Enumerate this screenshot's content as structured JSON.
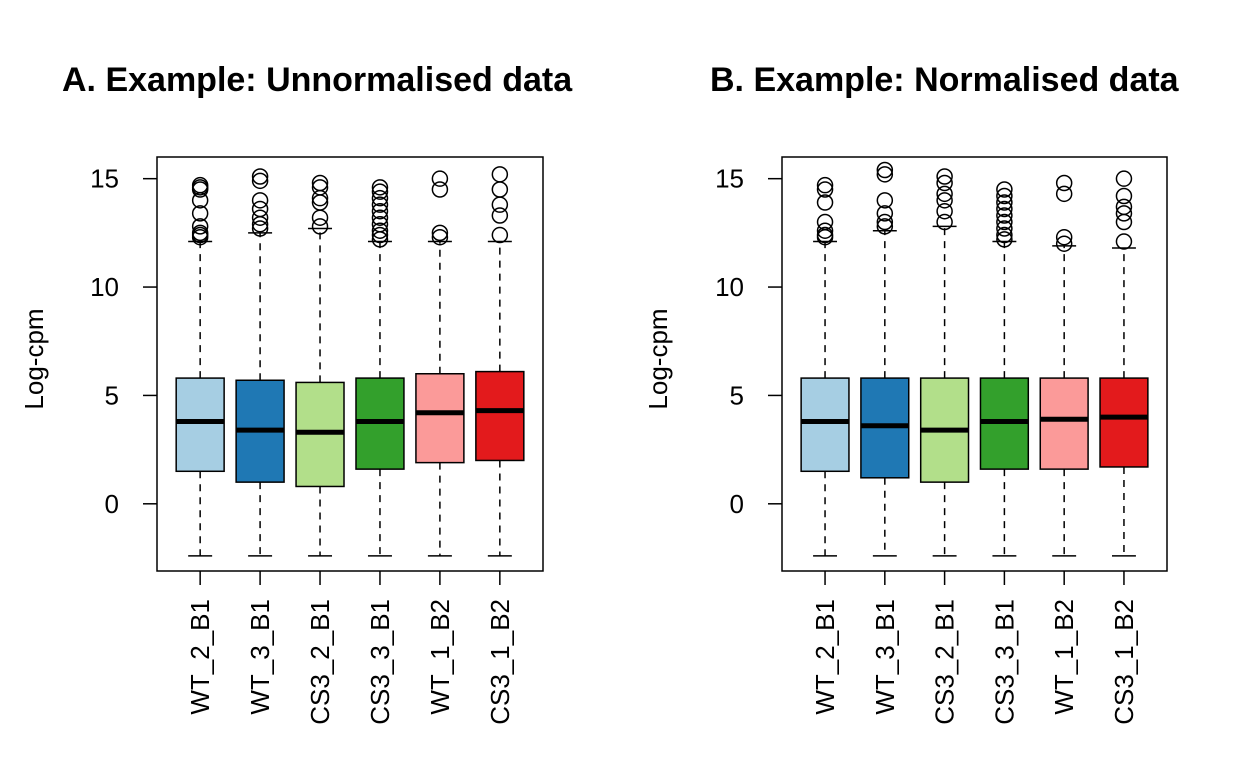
{
  "chart_data": [
    {
      "type": "box",
      "title": "A. Example: Unnormalised data",
      "ylabel": "Log-cpm",
      "xlabel": "",
      "ylim": [
        -3.1,
        16.0
      ],
      "yticks": [
        0,
        5,
        10,
        15
      ],
      "grid": false,
      "categories": [
        "WT_2_B1",
        "WT_3_B1",
        "CS3_2_B1",
        "CS3_3_B1",
        "WT_1_B2",
        "CS3_1_B2"
      ],
      "colors": [
        "#A6CEE3",
        "#1F78B4",
        "#B2DF8A",
        "#33A02C",
        "#FB9A99",
        "#E31A1C"
      ],
      "boxes": [
        {
          "q1": 1.5,
          "median": 3.8,
          "q3": 5.8,
          "whisker_low": -2.4,
          "whisker_high": 12.1,
          "outliers": [
            12.3,
            12.4,
            12.5,
            12.8,
            13.4,
            14.0,
            14.5,
            14.6,
            14.7
          ]
        },
        {
          "q1": 1.0,
          "median": 3.4,
          "q3": 5.7,
          "whisker_low": -2.4,
          "whisker_high": 12.5,
          "outliers": [
            12.7,
            12.9,
            13.2,
            13.6,
            14.0,
            14.9,
            15.1
          ]
        },
        {
          "q1": 0.8,
          "median": 3.3,
          "q3": 5.6,
          "whisker_low": -2.4,
          "whisker_high": 12.7,
          "outliers": [
            12.8,
            13.2,
            13.9,
            14.1,
            14.6,
            14.8
          ]
        },
        {
          "q1": 1.6,
          "median": 3.8,
          "q3": 5.8,
          "whisker_low": -2.4,
          "whisker_high": 12.1,
          "outliers": [
            12.2,
            12.4,
            12.6,
            12.9,
            13.2,
            13.5,
            13.8,
            14.1,
            14.4,
            14.6
          ]
        },
        {
          "q1": 1.9,
          "median": 4.2,
          "q3": 6.0,
          "whisker_low": -2.4,
          "whisker_high": 12.1,
          "outliers": [
            12.3,
            12.5,
            14.5,
            15.0
          ]
        },
        {
          "q1": 2.0,
          "median": 4.3,
          "q3": 6.1,
          "whisker_low": -2.4,
          "whisker_high": 12.1,
          "outliers": [
            12.4,
            13.3,
            13.8,
            14.5,
            15.2
          ]
        }
      ]
    },
    {
      "type": "box",
      "title": "B. Example: Normalised data",
      "ylabel": "Log-cpm",
      "xlabel": "",
      "ylim": [
        -3.1,
        16.0
      ],
      "yticks": [
        0,
        5,
        10,
        15
      ],
      "grid": false,
      "categories": [
        "WT_2_B1",
        "WT_3_B1",
        "CS3_2_B1",
        "CS3_3_B1",
        "WT_1_B2",
        "CS3_1_B2"
      ],
      "colors": [
        "#A6CEE3",
        "#1F78B4",
        "#B2DF8A",
        "#33A02C",
        "#FB9A99",
        "#E31A1C"
      ],
      "boxes": [
        {
          "q1": 1.5,
          "median": 3.8,
          "q3": 5.8,
          "whisker_low": -2.4,
          "whisker_high": 12.1,
          "outliers": [
            12.3,
            12.4,
            12.6,
            13.0,
            13.9,
            14.5,
            14.7
          ]
        },
        {
          "q1": 1.2,
          "median": 3.6,
          "q3": 5.8,
          "whisker_low": -2.4,
          "whisker_high": 12.6,
          "outliers": [
            12.8,
            13.0,
            13.4,
            14.0,
            15.2,
            15.4
          ]
        },
        {
          "q1": 1.0,
          "median": 3.4,
          "q3": 5.8,
          "whisker_low": -2.4,
          "whisker_high": 12.8,
          "outliers": [
            13.0,
            13.5,
            14.0,
            14.3,
            14.8,
            15.1
          ]
        },
        {
          "q1": 1.6,
          "median": 3.8,
          "q3": 5.8,
          "whisker_low": -2.4,
          "whisker_high": 12.1,
          "outliers": [
            12.2,
            12.4,
            12.7,
            13.0,
            13.3,
            13.6,
            13.9,
            14.2,
            14.5
          ]
        },
        {
          "q1": 1.6,
          "median": 3.9,
          "q3": 5.8,
          "whisker_low": -2.4,
          "whisker_high": 11.9,
          "outliers": [
            12.0,
            12.3,
            14.3,
            14.8
          ]
        },
        {
          "q1": 1.7,
          "median": 4.0,
          "q3": 5.8,
          "whisker_low": -2.4,
          "whisker_high": 11.8,
          "outliers": [
            12.1,
            13.0,
            13.4,
            13.7,
            14.2,
            15.0
          ]
        }
      ]
    }
  ]
}
